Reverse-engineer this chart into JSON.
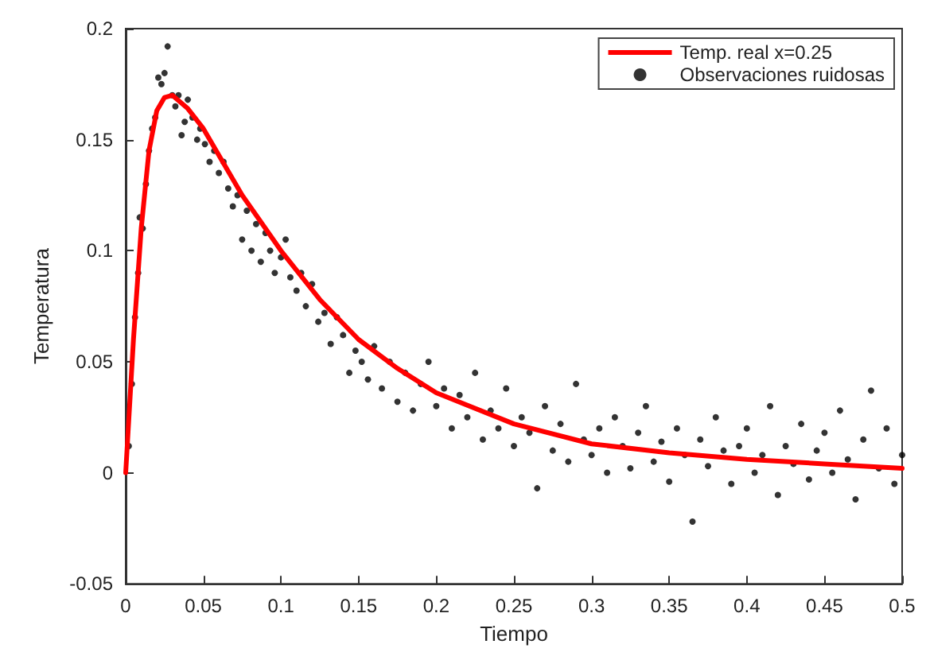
{
  "chart_data": {
    "type": "scatter",
    "xlabel": "Tiempo",
    "ylabel": "Temperatura",
    "xlim": [
      0,
      0.5
    ],
    "xticks": [
      0,
      0.05,
      0.1,
      0.15,
      0.2,
      0.25,
      0.3,
      0.35,
      0.4,
      0.45,
      0.5
    ],
    "ylim": [
      -0.05,
      0.2
    ],
    "yticks": [
      -0.05,
      0,
      0.05,
      0.1,
      0.15,
      0.2
    ],
    "grid": false,
    "legend": "top right",
    "marker": "circle",
    "series": [
      {
        "name": "Temp. real x=0.25",
        "type": "line",
        "color": "#ff0000",
        "line_style": "solid",
        "marker": "none",
        "x": [
          0,
          0.005,
          0.01,
          0.015,
          0.02,
          0.025,
          0.03,
          0.04,
          0.05,
          0.075,
          0.1,
          0.125,
          0.15,
          0.175,
          0.2,
          0.25,
          0.3,
          0.35,
          0.4,
          0.45,
          0.5
        ],
        "values": [
          0,
          0.06,
          0.11,
          0.145,
          0.163,
          0.169,
          0.17,
          0.164,
          0.155,
          0.125,
          0.1,
          0.078,
          0.06,
          0.047,
          0.036,
          0.022,
          0.013,
          0.009,
          0.006,
          0.004,
          0.002
        ]
      },
      {
        "name": "Observaciones ruidosas",
        "color": "#000000",
        "x": [
          0.002,
          0.004,
          0.006,
          0.008,
          0.009,
          0.011,
          0.013,
          0.015,
          0.017,
          0.019,
          0.021,
          0.023,
          0.025,
          0.027,
          0.03,
          0.032,
          0.034,
          0.036,
          0.038,
          0.04,
          0.043,
          0.046,
          0.048,
          0.051,
          0.054,
          0.057,
          0.06,
          0.063,
          0.066,
          0.069,
          0.072,
          0.075,
          0.078,
          0.081,
          0.084,
          0.087,
          0.09,
          0.093,
          0.096,
          0.1,
          0.103,
          0.106,
          0.11,
          0.113,
          0.116,
          0.12,
          0.124,
          0.128,
          0.132,
          0.136,
          0.14,
          0.144,
          0.148,
          0.152,
          0.156,
          0.16,
          0.165,
          0.17,
          0.175,
          0.18,
          0.185,
          0.19,
          0.195,
          0.2,
          0.205,
          0.21,
          0.215,
          0.22,
          0.225,
          0.23,
          0.235,
          0.24,
          0.245,
          0.25,
          0.255,
          0.26,
          0.265,
          0.27,
          0.275,
          0.28,
          0.285,
          0.29,
          0.295,
          0.3,
          0.305,
          0.31,
          0.315,
          0.32,
          0.325,
          0.33,
          0.335,
          0.34,
          0.345,
          0.35,
          0.355,
          0.36,
          0.365,
          0.37,
          0.375,
          0.38,
          0.385,
          0.39,
          0.395,
          0.4,
          0.405,
          0.41,
          0.415,
          0.42,
          0.425,
          0.43,
          0.435,
          0.44,
          0.445,
          0.45,
          0.455,
          0.46,
          0.465,
          0.47,
          0.475,
          0.48,
          0.485,
          0.49,
          0.495,
          0.5
        ],
        "values": [
          0.012,
          0.04,
          0.07,
          0.09,
          0.115,
          0.11,
          0.13,
          0.145,
          0.155,
          0.16,
          0.178,
          0.175,
          0.18,
          0.192,
          0.17,
          0.165,
          0.17,
          0.152,
          0.158,
          0.168,
          0.16,
          0.15,
          0.155,
          0.148,
          0.14,
          0.145,
          0.135,
          0.14,
          0.128,
          0.12,
          0.125,
          0.105,
          0.118,
          0.1,
          0.112,
          0.095,
          0.108,
          0.1,
          0.09,
          0.097,
          0.105,
          0.088,
          0.082,
          0.09,
          0.075,
          0.085,
          0.068,
          0.072,
          0.058,
          0.07,
          0.062,
          0.045,
          0.055,
          0.05,
          0.042,
          0.057,
          0.038,
          0.05,
          0.032,
          0.045,
          0.028,
          0.04,
          0.05,
          0.03,
          0.038,
          0.02,
          0.035,
          0.025,
          0.045,
          0.015,
          0.028,
          0.02,
          0.038,
          0.012,
          0.025,
          0.018,
          -0.007,
          0.03,
          0.01,
          0.022,
          0.005,
          0.04,
          0.015,
          0.008,
          0.02,
          0,
          0.025,
          0.012,
          0.002,
          0.018,
          0.03,
          0.005,
          0.014,
          -0.004,
          0.02,
          0.008,
          -0.022,
          0.015,
          0.003,
          0.025,
          0.01,
          -0.005,
          0.012,
          0.02,
          0,
          0.008,
          0.03,
          -0.01,
          0.012,
          0.004,
          0.022,
          -0.003,
          0.01,
          0.018,
          0,
          0.028,
          0.006,
          -0.012,
          0.015,
          0.037,
          0.002,
          0.02,
          -0.005,
          0.008
        ]
      }
    ]
  }
}
